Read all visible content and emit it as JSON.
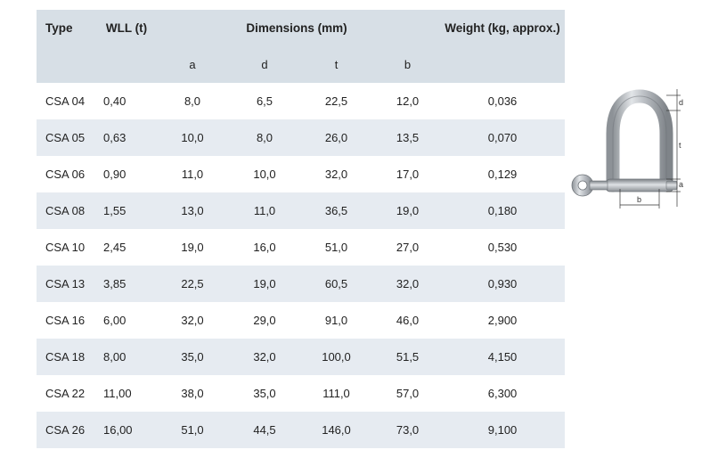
{
  "header": {
    "type": "Type",
    "wll": "WLL (t)",
    "dimensions": "Dimensions (mm)",
    "weight": "Weight (kg, approx.)",
    "sub_a": "a",
    "sub_d": "d",
    "sub_t": "t",
    "sub_b": "b"
  },
  "rows": [
    {
      "type": "CSA 04",
      "wll": "0,40",
      "a": "8,0",
      "d": "6,5",
      "t": "22,5",
      "b": "12,0",
      "weight": "0,036"
    },
    {
      "type": "CSA 05",
      "wll": "0,63",
      "a": "10,0",
      "d": "8,0",
      "t": "26,0",
      "b": "13,5",
      "weight": "0,070"
    },
    {
      "type": "CSA 06",
      "wll": "0,90",
      "a": "11,0",
      "d": "10,0",
      "t": "32,0",
      "b": "17,0",
      "weight": "0,129"
    },
    {
      "type": "CSA 08",
      "wll": "1,55",
      "a": "13,0",
      "d": "11,0",
      "t": "36,5",
      "b": "19,0",
      "weight": "0,180"
    },
    {
      "type": "CSA 10",
      "wll": "2,45",
      "a": "19,0",
      "d": "16,0",
      "t": "51,0",
      "b": "27,0",
      "weight": "0,530"
    },
    {
      "type": "CSA 13",
      "wll": "3,85",
      "a": "22,5",
      "d": "19,0",
      "t": "60,5",
      "b": "32,0",
      "weight": "0,930"
    },
    {
      "type": "CSA 16",
      "wll": "6,00",
      "a": "32,0",
      "d": "29,0",
      "t": "91,0",
      "b": "46,0",
      "weight": "2,900"
    },
    {
      "type": "CSA 18",
      "wll": "8,00",
      "a": "35,0",
      "d": "32,0",
      "t": "100,0",
      "b": "51,5",
      "weight": "4,150"
    },
    {
      "type": "CSA 22",
      "wll": "11,00",
      "a": "38,0",
      "d": "35,0",
      "t": "111,0",
      "b": "57,0",
      "weight": "6,300"
    },
    {
      "type": "CSA 26",
      "wll": "16,00",
      "a": "51,0",
      "d": "44,5",
      "t": "146,0",
      "b": "73,0",
      "weight": "9,100"
    }
  ],
  "diagram": {
    "label_d": "d",
    "label_t": "t",
    "label_a": "a",
    "label_b": "b"
  }
}
